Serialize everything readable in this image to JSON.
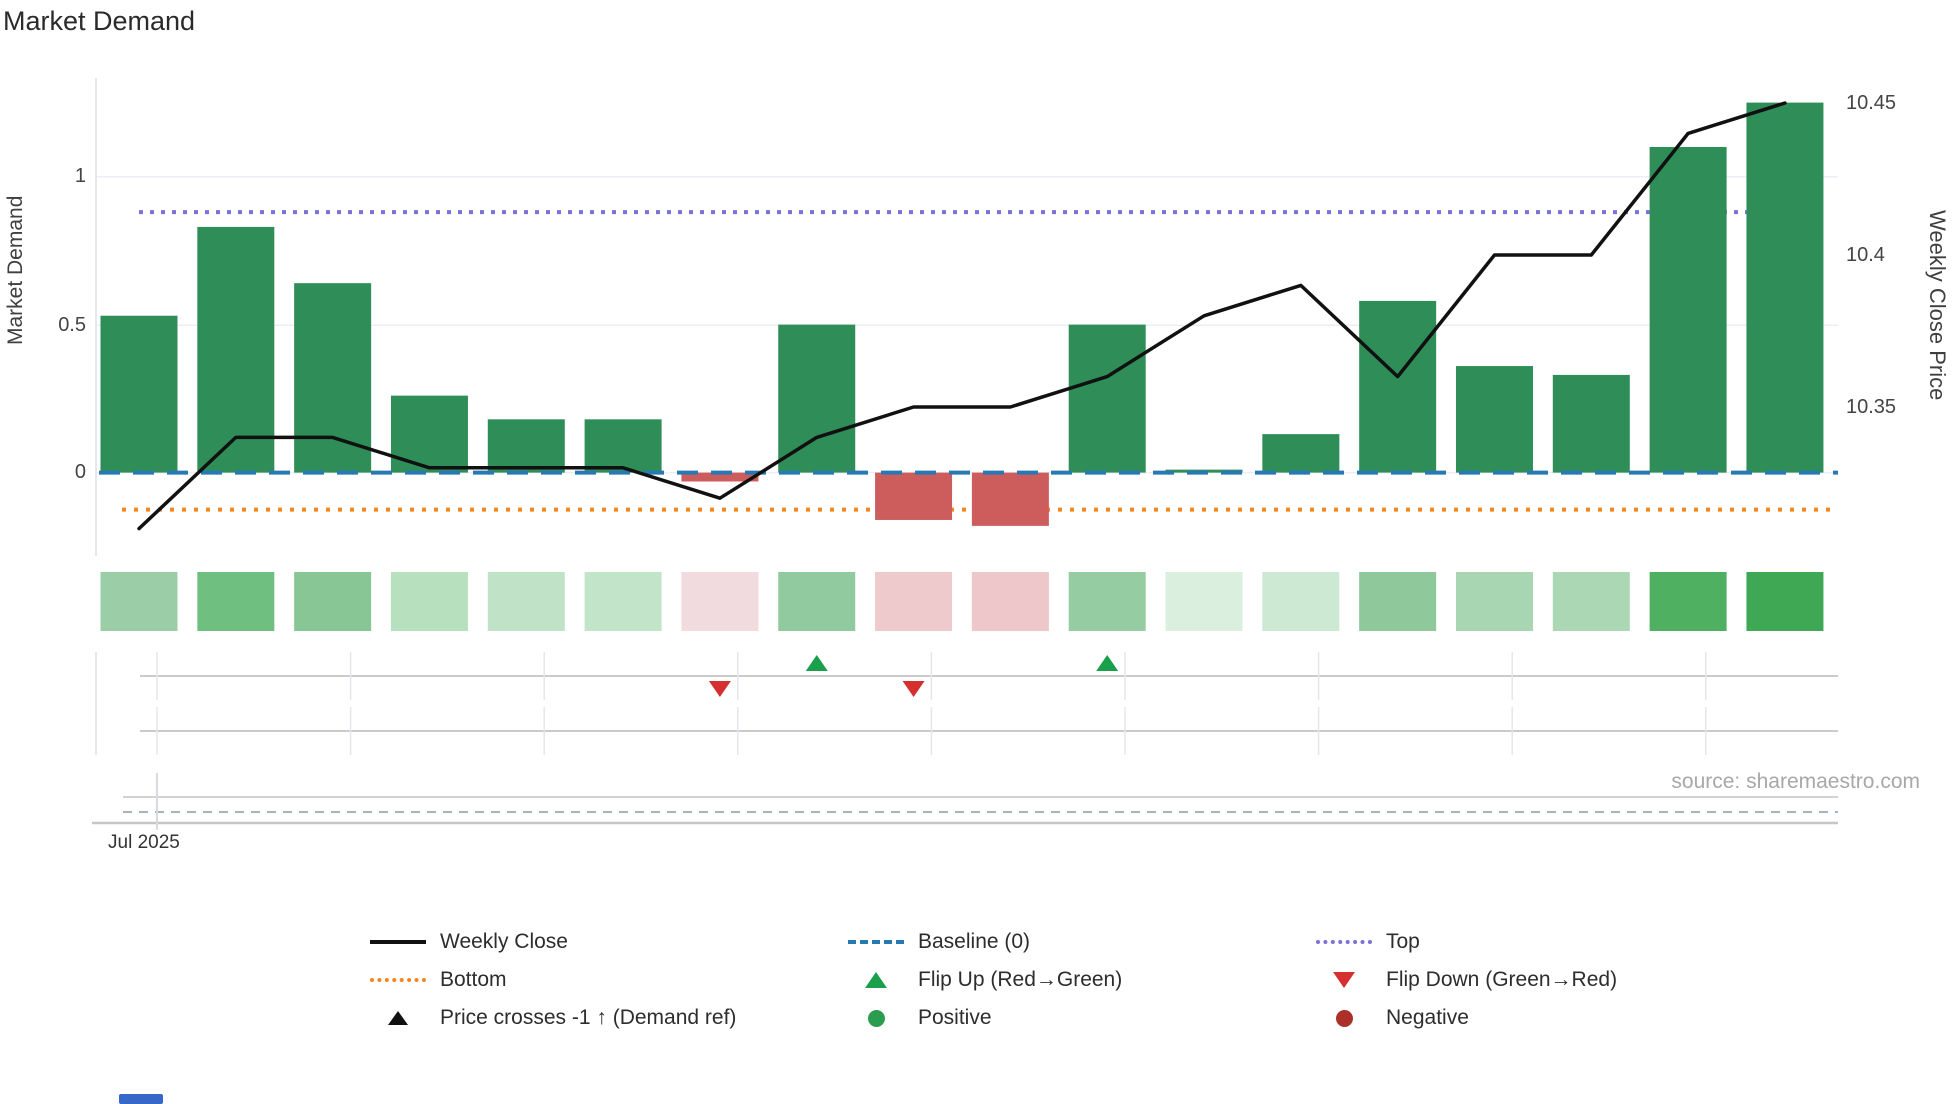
{
  "title": "Market Demand",
  "axes": {
    "left_label": "Market Demand",
    "right_label": "Weekly Close Price",
    "left_ticks": [
      "1",
      "0.5",
      "0"
    ],
    "right_ticks": [
      "10.45",
      "10.4",
      "10.35"
    ],
    "x_tick": "Jul 2025"
  },
  "source_text": "source: sharemaestro.com",
  "legend": {
    "weekly_close": "Weekly Close",
    "baseline": "Baseline (0)",
    "top": "Top",
    "bottom": "Bottom",
    "flip_up": "Flip Up (Red→Green)",
    "flip_down": "Flip Down (Green→Red)",
    "price_crosses": "Price crosses -1 ↑ (Demand ref)",
    "positive": "Positive",
    "negative": "Negative"
  },
  "chart_data": {
    "type": "bar+line",
    "title": "Market Demand",
    "x": {
      "start_label": "Jul 2025",
      "points": 18,
      "frequency": "weekly"
    },
    "left_axis": {
      "label": "Market Demand",
      "ticks": [
        1,
        0.5,
        0
      ],
      "approx_range": [
        -0.3,
        1.34
      ]
    },
    "right_axis": {
      "label": "Weekly Close Price",
      "ticks": [
        10.45,
        10.4,
        10.35
      ],
      "approx_range": [
        10.3,
        10.46
      ]
    },
    "series": [
      {
        "name": "Market Demand",
        "type": "bar",
        "values": [
          0.53,
          0.83,
          0.64,
          0.26,
          0.18,
          0.18,
          -0.03,
          0.5,
          -0.16,
          -0.18,
          0.5,
          0.01,
          0.13,
          0.58,
          0.36,
          0.33,
          1.1,
          1.25
        ]
      },
      {
        "name": "Weekly Close",
        "type": "line",
        "values": [
          10.31,
          10.34,
          10.34,
          10.33,
          10.33,
          10.33,
          10.32,
          10.34,
          10.35,
          10.35,
          10.36,
          10.38,
          10.39,
          10.36,
          10.4,
          10.4,
          10.44,
          10.45
        ]
      }
    ],
    "reference_lines": {
      "baseline": 0,
      "top": 0.88,
      "bottom": -0.125
    },
    "events": {
      "flip_up_weeks": [
        8,
        11
      ],
      "flip_down_weeks": [
        7,
        9
      ],
      "price_cross_weeks": []
    },
    "heatmap_colors": [
      "#9bcda7",
      "#6fbf81",
      "#88c795",
      "#b7e0bf",
      "#c0e3c7",
      "#c2e4c9",
      "#f2dbde",
      "#92ca9f",
      "#eecacc",
      "#edc7c9",
      "#96cca2",
      "#dbefdf",
      "#cde9d3",
      "#8ec89b",
      "#a8d5b2",
      "#abd7b5",
      "#4fb061",
      "#3ea854"
    ],
    "colors": {
      "positive_bar": "#2f8e58",
      "negative_bar": "#cd5c5c",
      "line": "#111111",
      "baseline": "#2878b4",
      "top": "#7b72d9",
      "bottom": "#f5861f",
      "flip_up": "#1aa04b",
      "flip_down": "#d62f2f",
      "positive_dot": "#2a9d4e",
      "negative_dot": "#ad2f2a",
      "grid": "#eceef6",
      "subplot_line": "#cbcbcb"
    },
    "legend_position": "bottom",
    "grid": "horizontal-only"
  }
}
